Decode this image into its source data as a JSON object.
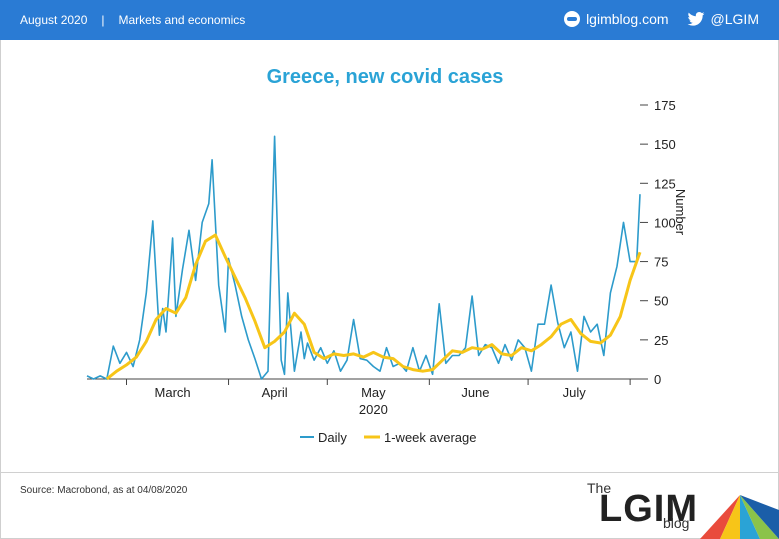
{
  "header": {
    "date": "August 2020",
    "separator": "|",
    "section": "Markets and economics",
    "site": "lgimblog.com",
    "twitter": "@LGIM"
  },
  "footer": {
    "source": "Source: Macrobond, as at 04/08/2020",
    "brand_the": "The",
    "brand_main": "LGIM",
    "brand_sub": "blog"
  },
  "colors": {
    "header_bg": "#2a7bd4",
    "title": "#2aa3d6",
    "daily": "#2d9bcb",
    "average": "#f7c518"
  },
  "chart_data": {
    "type": "line",
    "title": "Greece, new covid cases",
    "ylabel": "Number",
    "xlabel": "2020",
    "ylim": [
      0,
      175
    ],
    "yticks": [
      0,
      25,
      50,
      75,
      100,
      125,
      150,
      175
    ],
    "x_start": "2020-02-18",
    "x_end": "2020-08-04",
    "month_ticks": [
      {
        "label": "March",
        "date": "2020-03-15"
      },
      {
        "label": "April",
        "date": "2020-04-15"
      },
      {
        "label": "May",
        "date": "2020-05-15"
      },
      {
        "label": "June",
        "date": "2020-06-15"
      },
      {
        "label": "July",
        "date": "2020-07-15"
      }
    ],
    "month_dividers": [
      "2020-03-01",
      "2020-04-01",
      "2020-05-01",
      "2020-06-01",
      "2020-07-01",
      "2020-08-01"
    ],
    "legend_position": "bottom-center",
    "grid": false,
    "series": [
      {
        "name": "Daily",
        "dates": [
          "2020-02-18",
          "2020-02-20",
          "2020-02-22",
          "2020-02-24",
          "2020-02-26",
          "2020-02-28",
          "2020-03-01",
          "2020-03-03",
          "2020-03-05",
          "2020-03-07",
          "2020-03-09",
          "2020-03-11",
          "2020-03-12",
          "2020-03-13",
          "2020-03-15",
          "2020-03-16",
          "2020-03-18",
          "2020-03-20",
          "2020-03-22",
          "2020-03-24",
          "2020-03-26",
          "2020-03-27",
          "2020-03-29",
          "2020-03-31",
          "2020-04-01",
          "2020-04-03",
          "2020-04-05",
          "2020-04-07",
          "2020-04-09",
          "2020-04-11",
          "2020-04-13",
          "2020-04-15",
          "2020-04-17",
          "2020-04-18",
          "2020-04-19",
          "2020-04-20",
          "2020-04-21",
          "2020-04-23",
          "2020-04-24",
          "2020-04-25",
          "2020-04-27",
          "2020-04-29",
          "2020-05-01",
          "2020-05-03",
          "2020-05-05",
          "2020-05-07",
          "2020-05-09",
          "2020-05-11",
          "2020-05-13",
          "2020-05-15",
          "2020-05-17",
          "2020-05-19",
          "2020-05-21",
          "2020-05-23",
          "2020-05-25",
          "2020-05-27",
          "2020-05-29",
          "2020-05-31",
          "2020-06-02",
          "2020-06-04",
          "2020-06-06",
          "2020-06-08",
          "2020-06-10",
          "2020-06-12",
          "2020-06-14",
          "2020-06-16",
          "2020-06-18",
          "2020-06-20",
          "2020-06-22",
          "2020-06-24",
          "2020-06-26",
          "2020-06-28",
          "2020-06-30",
          "2020-07-02",
          "2020-07-04",
          "2020-07-06",
          "2020-07-08",
          "2020-07-10",
          "2020-07-12",
          "2020-07-14",
          "2020-07-16",
          "2020-07-18",
          "2020-07-20",
          "2020-07-22",
          "2020-07-24",
          "2020-07-26",
          "2020-07-28",
          "2020-07-30",
          "2020-08-01",
          "2020-08-03",
          "2020-08-04"
        ],
        "values": [
          2,
          0,
          2,
          0,
          21,
          10,
          17,
          8,
          25,
          55,
          101,
          28,
          45,
          30,
          90,
          40,
          70,
          95,
          63,
          100,
          112,
          140,
          60,
          30,
          77,
          60,
          40,
          25,
          13,
          0,
          5,
          155,
          12,
          3,
          55,
          30,
          5,
          30,
          13,
          23,
          12,
          20,
          10,
          18,
          5,
          12,
          38,
          13,
          12,
          8,
          5,
          20,
          8,
          10,
          5,
          20,
          5,
          15,
          3,
          48,
          10,
          15,
          15,
          20,
          53,
          15,
          22,
          20,
          10,
          22,
          12,
          25,
          20,
          5,
          35,
          35,
          60,
          36,
          20,
          30,
          5,
          40,
          30,
          35,
          15,
          55,
          72,
          100,
          75,
          75,
          118
        ]
      },
      {
        "name": "1-week average",
        "dates": [
          "2020-02-24",
          "2020-02-27",
          "2020-03-01",
          "2020-03-04",
          "2020-03-07",
          "2020-03-10",
          "2020-03-13",
          "2020-03-16",
          "2020-03-19",
          "2020-03-22",
          "2020-03-25",
          "2020-03-28",
          "2020-03-31",
          "2020-04-03",
          "2020-04-06",
          "2020-04-09",
          "2020-04-12",
          "2020-04-15",
          "2020-04-18",
          "2020-04-21",
          "2020-04-24",
          "2020-04-27",
          "2020-04-30",
          "2020-05-03",
          "2020-05-06",
          "2020-05-09",
          "2020-05-12",
          "2020-05-15",
          "2020-05-18",
          "2020-05-21",
          "2020-05-24",
          "2020-05-27",
          "2020-05-30",
          "2020-06-02",
          "2020-06-05",
          "2020-06-08",
          "2020-06-11",
          "2020-06-14",
          "2020-06-17",
          "2020-06-20",
          "2020-06-23",
          "2020-06-26",
          "2020-06-29",
          "2020-07-02",
          "2020-07-05",
          "2020-07-08",
          "2020-07-11",
          "2020-07-14",
          "2020-07-17",
          "2020-07-20",
          "2020-07-23",
          "2020-07-26",
          "2020-07-29",
          "2020-08-01",
          "2020-08-04"
        ],
        "values": [
          0,
          5,
          9,
          14,
          24,
          38,
          45,
          42,
          52,
          73,
          88,
          92,
          78,
          65,
          52,
          37,
          20,
          24,
          30,
          42,
          35,
          17,
          13,
          16,
          15,
          16,
          14,
          17,
          14,
          13,
          8,
          6,
          5,
          6,
          12,
          18,
          17,
          20,
          19,
          22,
          16,
          15,
          20,
          18,
          22,
          27,
          35,
          38,
          29,
          24,
          23,
          28,
          40,
          63,
          81
        ]
      }
    ]
  }
}
